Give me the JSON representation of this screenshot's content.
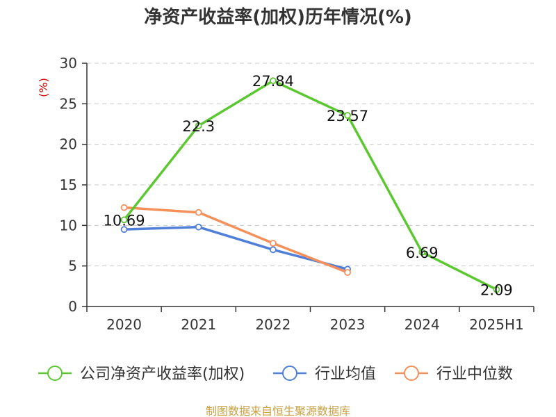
{
  "chart_data": {
    "type": "line",
    "title": "净资产收益率(加权)历年情况(%)",
    "ylabel": "(%)",
    "xlabel": "",
    "categories": [
      "2020",
      "2021",
      "2022",
      "2023",
      "2024",
      "2025H1"
    ],
    "ylim": [
      0,
      30
    ],
    "yticks": [
      0,
      5,
      10,
      15,
      20,
      25,
      30
    ],
    "grid": true,
    "legend_position": "bottom",
    "series": [
      {
        "name": "公司净资产收益率(加权)",
        "color": "#5cc830",
        "values": [
          10.69,
          22.3,
          27.84,
          23.57,
          6.69,
          2.09
        ],
        "labels": [
          "10.69",
          "22.3",
          "27.84",
          "23.57",
          "6.69",
          "2.09"
        ]
      },
      {
        "name": "行业均值",
        "color": "#4f7fd9",
        "values": [
          9.5,
          9.8,
          7.0,
          4.6,
          null,
          null
        ]
      },
      {
        "name": "行业中位数",
        "color": "#f5905a",
        "values": [
          12.2,
          11.6,
          7.8,
          4.2,
          null,
          null
        ]
      }
    ]
  },
  "source_note": "制图数据来自恒生聚源数据库"
}
